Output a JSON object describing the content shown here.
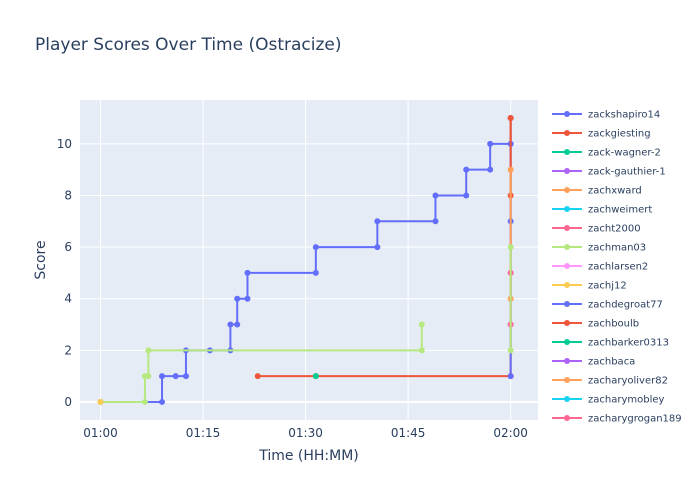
{
  "chart_data": {
    "type": "line",
    "line_shape": "step",
    "title": "Player Scores Over Time (Ostracize)",
    "xlabel": "Time (HH:MM)",
    "ylabel": "Score",
    "x_ticks": [
      "01:00",
      "01:15",
      "01:30",
      "01:45",
      "02:00"
    ],
    "y_ticks": [
      0,
      2,
      4,
      6,
      8,
      10
    ],
    "xlim": [
      "00:57",
      "02:04"
    ],
    "ylim": [
      -0.7,
      11.7
    ],
    "grid": true,
    "legend_position": "right",
    "background": "#e5ecf6",
    "series": [
      {
        "name": "zackshapiro14",
        "color": "#636efa",
        "points": [
          [
            "01:00",
            0
          ],
          [
            "01:09",
            0
          ],
          [
            "01:09",
            1
          ],
          [
            "01:11",
            1
          ],
          [
            "01:12.5",
            1
          ],
          [
            "01:12.5",
            2
          ],
          [
            "01:16",
            2
          ],
          [
            "01:16",
            2
          ],
          [
            "01:19",
            2
          ],
          [
            "01:19",
            3
          ],
          [
            "01:20",
            3
          ],
          [
            "01:20",
            4
          ],
          [
            "01:21.5",
            4
          ],
          [
            "01:21.5",
            5
          ],
          [
            "01:31.5",
            5
          ],
          [
            "01:31.5",
            6
          ],
          [
            "01:40.5",
            6
          ],
          [
            "01:40.5",
            7
          ],
          [
            "01:49",
            7
          ],
          [
            "01:49",
            8
          ],
          [
            "01:53.5",
            8
          ],
          [
            "01:53.5",
            9
          ],
          [
            "01:57",
            9
          ],
          [
            "01:57",
            10
          ],
          [
            "02:00",
            10
          ],
          [
            "02:00",
            11
          ]
        ]
      },
      {
        "name": "zackgiesting",
        "color": "#ef553b",
        "points": [
          [
            "01:23",
            1
          ],
          [
            "01:31.5",
            1
          ],
          [
            "02:00",
            1
          ],
          [
            "02:00",
            11
          ]
        ]
      },
      {
        "name": "zack-wagner-2",
        "color": "#00cc96",
        "points": [
          [
            "01:31.5",
            1
          ]
        ]
      },
      {
        "name": "zack-gauthier-1",
        "color": "#ab63fa",
        "points": []
      },
      {
        "name": "zachxward",
        "color": "#ffa15a",
        "points": [
          [
            "01:00",
            0
          ]
        ]
      },
      {
        "name": "zachweimert",
        "color": "#19d3f3",
        "points": []
      },
      {
        "name": "zacht2000",
        "color": "#ff6692",
        "points": []
      },
      {
        "name": "zachman03",
        "color": "#b6e880",
        "points": [
          [
            "01:00",
            0
          ],
          [
            "01:06.5",
            0
          ],
          [
            "01:06.5",
            1
          ],
          [
            "01:07",
            1
          ],
          [
            "01:07",
            2
          ],
          [
            "01:47",
            2
          ],
          [
            "01:47",
            3
          ]
        ]
      },
      {
        "name": "zachlarsen2",
        "color": "#ff97ff",
        "points": [
          [
            "02:00",
            5
          ]
        ]
      },
      {
        "name": "zachj12",
        "color": "#fecb52",
        "points": [
          [
            "01:00",
            0
          ]
        ]
      },
      {
        "name": "zachdegroat77",
        "color": "#636efa",
        "points": [
          [
            "02:00",
            1
          ],
          [
            "02:00",
            7
          ],
          [
            "02:00",
            10
          ]
        ]
      },
      {
        "name": "zachboulb",
        "color": "#ef553b",
        "points": [
          [
            "02:00",
            8
          ],
          [
            "02:00",
            11
          ]
        ]
      },
      {
        "name": "zachbarker0313",
        "color": "#00cc96",
        "points": []
      },
      {
        "name": "zachbaca",
        "color": "#ab63fa",
        "points": [
          [
            "02:00",
            3
          ]
        ]
      },
      {
        "name": "zacharyoliver82",
        "color": "#ffa15a",
        "points": [
          [
            "02:00",
            4
          ],
          [
            "02:00",
            9
          ]
        ]
      },
      {
        "name": "zacharymobley",
        "color": "#19d3f3",
        "points": []
      },
      {
        "name": "zacharygrogan189",
        "color": "#ff6692",
        "points": [
          [
            "02:00",
            3
          ],
          [
            "02:00",
            5
          ]
        ]
      },
      {
        "name": "",
        "color": "#b6e880",
        "points": [
          [
            "02:00",
            2
          ],
          [
            "02:00",
            6
          ]
        ]
      }
    ]
  }
}
